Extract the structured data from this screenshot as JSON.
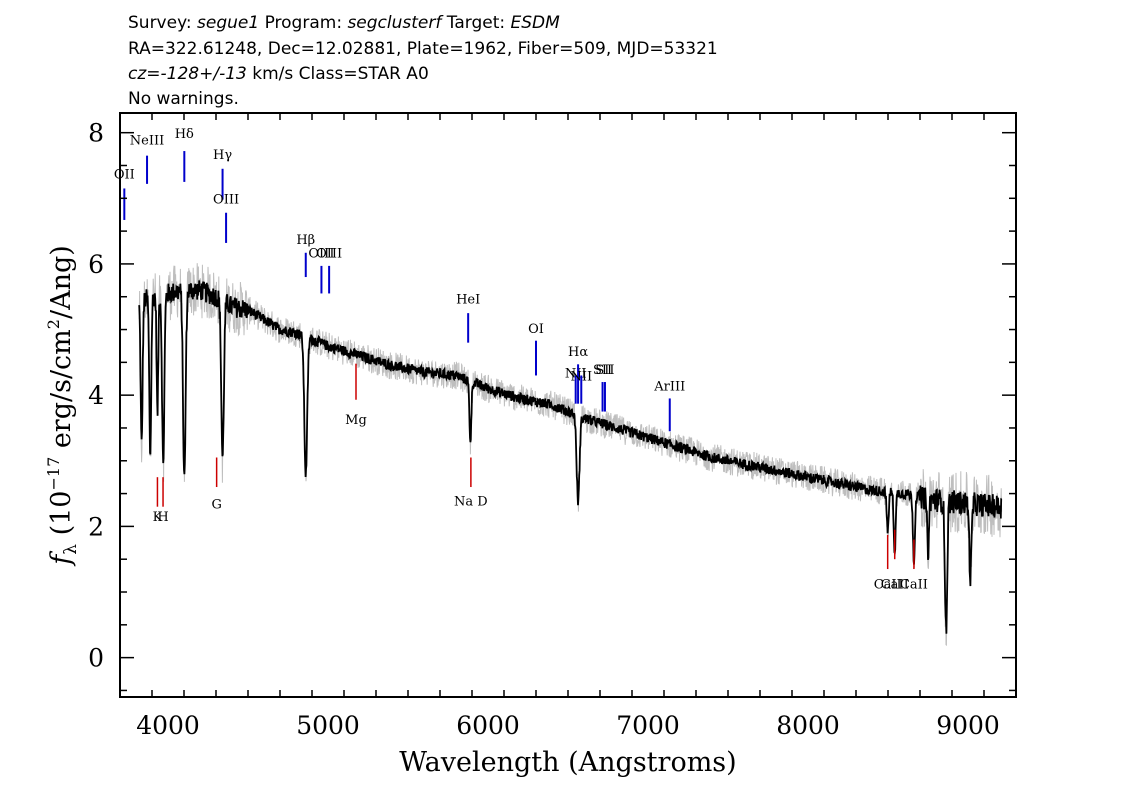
{
  "header": {
    "line1": [
      {
        "t": "Survey: ",
        "s": "normal"
      },
      {
        "t": "segue1",
        "s": "italic"
      },
      {
        "t": " Program: ",
        "s": "normal"
      },
      {
        "t": "segclusterf",
        "s": "italic"
      },
      {
        "t": " Target: ",
        "s": "normal"
      },
      {
        "t": "ESDM",
        "s": "italic"
      }
    ],
    "line2": "RA=322.61248, Dec=12.02881, Plate=1962, Fiber=509, MJD=53321",
    "line3": [
      {
        "t": "cz=-128+/-13",
        "s": "italic"
      },
      {
        "t": " km/s Class=STAR A0",
        "s": "normal"
      }
    ],
    "line4": "No warnings."
  },
  "chart_data": {
    "type": "line",
    "xlabel": "Wavelength (Angstroms)",
    "ylabel_parts": {
      "f": "f",
      "sub": "λ",
      "a": " (10",
      "exp1": "−17",
      "b": " erg/s/cm",
      "exp2": "2",
      "c": "/Ang)"
    },
    "xlim": [
      3700,
      9300
    ],
    "ylim": [
      -0.6,
      8.3
    ],
    "xticks": [
      4000,
      5000,
      6000,
      7000,
      8000,
      9000
    ],
    "yticks": [
      0,
      2,
      4,
      6,
      8
    ],
    "colors": {
      "flux": "#000000",
      "error": "#bebebe",
      "emission": "#0000cc",
      "absorption": "#cc0000"
    },
    "continuum": [
      [
        3800,
        5.4
      ],
      [
        3900,
        5.5
      ],
      [
        4000,
        5.55
      ],
      [
        4100,
        5.6
      ],
      [
        4200,
        5.6
      ],
      [
        4300,
        5.5
      ],
      [
        4400,
        5.35
      ],
      [
        4500,
        5.3
      ],
      [
        4600,
        5.15
      ],
      [
        4700,
        5.0
      ],
      [
        4800,
        4.95
      ],
      [
        4900,
        4.85
      ],
      [
        5000,
        4.75
      ],
      [
        5200,
        4.6
      ],
      [
        5400,
        4.45
      ],
      [
        5600,
        4.35
      ],
      [
        5800,
        4.3
      ],
      [
        6000,
        4.1
      ],
      [
        6200,
        3.95
      ],
      [
        6400,
        3.85
      ],
      [
        6500,
        3.75
      ],
      [
        6600,
        3.65
      ],
      [
        6800,
        3.5
      ],
      [
        7000,
        3.35
      ],
      [
        7200,
        3.2
      ],
      [
        7400,
        3.05
      ],
      [
        7600,
        2.95
      ],
      [
        7800,
        2.85
      ],
      [
        8000,
        2.75
      ],
      [
        8200,
        2.65
      ],
      [
        8400,
        2.55
      ],
      [
        8600,
        2.5
      ],
      [
        8800,
        2.4
      ],
      [
        9000,
        2.35
      ],
      [
        9200,
        2.3
      ]
    ],
    "absorption_features": [
      {
        "x": 3835,
        "depth": 2.2,
        "w": 6
      },
      {
        "x": 3889,
        "depth": 2.4,
        "w": 6
      },
      {
        "x": 3934,
        "depth": 1.8,
        "w": 5
      },
      {
        "x": 3970,
        "depth": 2.6,
        "w": 7
      },
      {
        "x": 4102,
        "depth": 2.9,
        "w": 8
      },
      {
        "x": 4341,
        "depth": 2.4,
        "w": 8
      },
      {
        "x": 4861,
        "depth": 2.1,
        "w": 9
      },
      {
        "x": 5890,
        "depth": 0.9,
        "w": 6
      },
      {
        "x": 6563,
        "depth": 1.3,
        "w": 9
      },
      {
        "x": 8498,
        "depth": 0.6,
        "w": 6
      },
      {
        "x": 8542,
        "depth": 0.9,
        "w": 6
      },
      {
        "x": 8662,
        "depth": 1.0,
        "w": 6
      },
      {
        "x": 8750,
        "depth": 0.8,
        "w": 6
      },
      {
        "x": 8863,
        "depth": 2.0,
        "w": 7
      },
      {
        "x": 9015,
        "depth": 1.1,
        "w": 7
      }
    ],
    "line_labels": [
      {
        "text": "OII",
        "x": 3727,
        "y0": 6.67,
        "y1": 7.15,
        "ly": 7.3,
        "color": "emission"
      },
      {
        "text": "NeIII",
        "x": 3869,
        "y0": 7.22,
        "y1": 7.65,
        "ly": 7.82,
        "color": "emission"
      },
      {
        "text": "Hδ",
        "x": 4102,
        "y0": 7.25,
        "y1": 7.72,
        "ly": 7.92,
        "color": "emission"
      },
      {
        "text": "Hγ",
        "x": 4341,
        "y0": 6.98,
        "y1": 7.45,
        "ly": 7.6,
        "color": "emission"
      },
      {
        "text": "OIII",
        "x": 4363,
        "y0": 6.32,
        "y1": 6.78,
        "ly": 6.92,
        "color": "emission"
      },
      {
        "text": "Hβ",
        "x": 4861,
        "y0": 5.8,
        "y1": 6.17,
        "ly": 6.3,
        "color": "emission"
      },
      {
        "text": "OIII",
        "x": 4959,
        "y0": 5.55,
        "y1": 5.97,
        "ly": 6.1,
        "color": "emission"
      },
      {
        "text": "OIII",
        "x": 5007,
        "y0": 5.55,
        "y1": 5.97,
        "ly": 6.1,
        "color": "emission"
      },
      {
        "text": "HeI",
        "x": 5876,
        "y0": 4.8,
        "y1": 5.25,
        "ly": 5.4,
        "color": "emission"
      },
      {
        "text": "OI",
        "x": 6300,
        "y0": 4.3,
        "y1": 4.83,
        "ly": 4.95,
        "color": "emission"
      },
      {
        "text": "NII",
        "x": 6548,
        "y0": 3.87,
        "y1": 4.3,
        "ly": 4.27,
        "color": "emission"
      },
      {
        "text": "Hα",
        "x": 6563,
        "y0": 3.87,
        "y1": 4.47,
        "ly": 4.6,
        "color": "emission"
      },
      {
        "text": "NII",
        "x": 6583,
        "y0": 3.87,
        "y1": 4.3,
        "ly": 4.22,
        "color": "emission"
      },
      {
        "text": "SII",
        "x": 6716,
        "y0": 3.75,
        "y1": 4.2,
        "ly": 4.32,
        "color": "emission"
      },
      {
        "text": "SII",
        "x": 6731,
        "y0": 3.75,
        "y1": 4.2,
        "ly": 4.32,
        "color": "emission"
      },
      {
        "text": "ArIII",
        "x": 7136,
        "y0": 3.45,
        "y1": 3.95,
        "ly": 4.07,
        "color": "emission"
      },
      {
        "text": "K",
        "x": 3934,
        "y0": 2.3,
        "y1": 2.75,
        "ly": 2.08,
        "color": "absorption"
      },
      {
        "text": "H",
        "x": 3969,
        "y0": 2.3,
        "y1": 2.75,
        "ly": 2.08,
        "color": "absorption"
      },
      {
        "text": "G",
        "x": 4304,
        "y0": 2.6,
        "y1": 3.05,
        "ly": 2.27,
        "color": "absorption"
      },
      {
        "text": "Mg",
        "x": 5175,
        "y0": 3.93,
        "y1": 4.48,
        "ly": 3.56,
        "color": "absorption"
      },
      {
        "text": "Na D",
        "x": 5893,
        "y0": 2.6,
        "y1": 3.05,
        "ly": 2.32,
        "color": "absorption"
      },
      {
        "text": "CaII",
        "x": 8498,
        "y0": 1.35,
        "y1": 1.87,
        "ly": 1.05,
        "color": "absorption"
      },
      {
        "text": "CaII",
        "x": 8542,
        "y0": 1.5,
        "y1": 1.95,
        "ly": 1.05,
        "color": "absorption"
      },
      {
        "text": "CaII",
        "x": 8662,
        "y0": 1.35,
        "y1": 1.8,
        "ly": 1.05,
        "color": "absorption"
      }
    ],
    "grid": false,
    "legend": "none"
  }
}
